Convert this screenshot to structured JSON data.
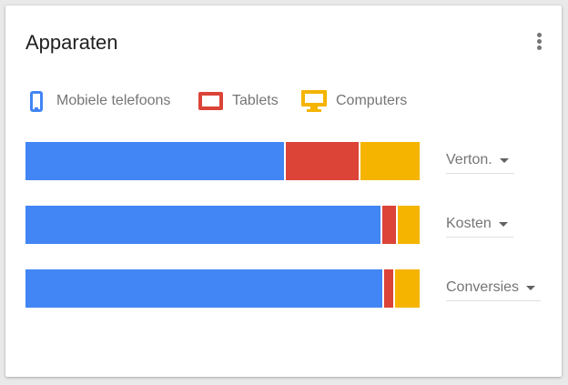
{
  "card": {
    "title": "Apparaten",
    "menu_icon": "more-vert-icon"
  },
  "legend": [
    {
      "label": "Mobiele telefoons",
      "icon": "phone-icon",
      "color": "#4285f4"
    },
    {
      "label": "Tablets",
      "icon": "tablet-icon",
      "color": "#db4437"
    },
    {
      "label": "Computers",
      "icon": "desktop-icon",
      "color": "#f4b400"
    }
  ],
  "colors": {
    "mobile": "#4285f4",
    "tablet": "#db4437",
    "computer": "#f4b400"
  },
  "rows": [
    {
      "metric": "Verton.",
      "shares": [
        0.66,
        0.19,
        0.15
      ]
    },
    {
      "metric": "Kosten",
      "shares": [
        0.905,
        0.04,
        0.055
      ]
    },
    {
      "metric": "Conversies",
      "shares": [
        0.91,
        0.027,
        0.063
      ]
    }
  ]
}
